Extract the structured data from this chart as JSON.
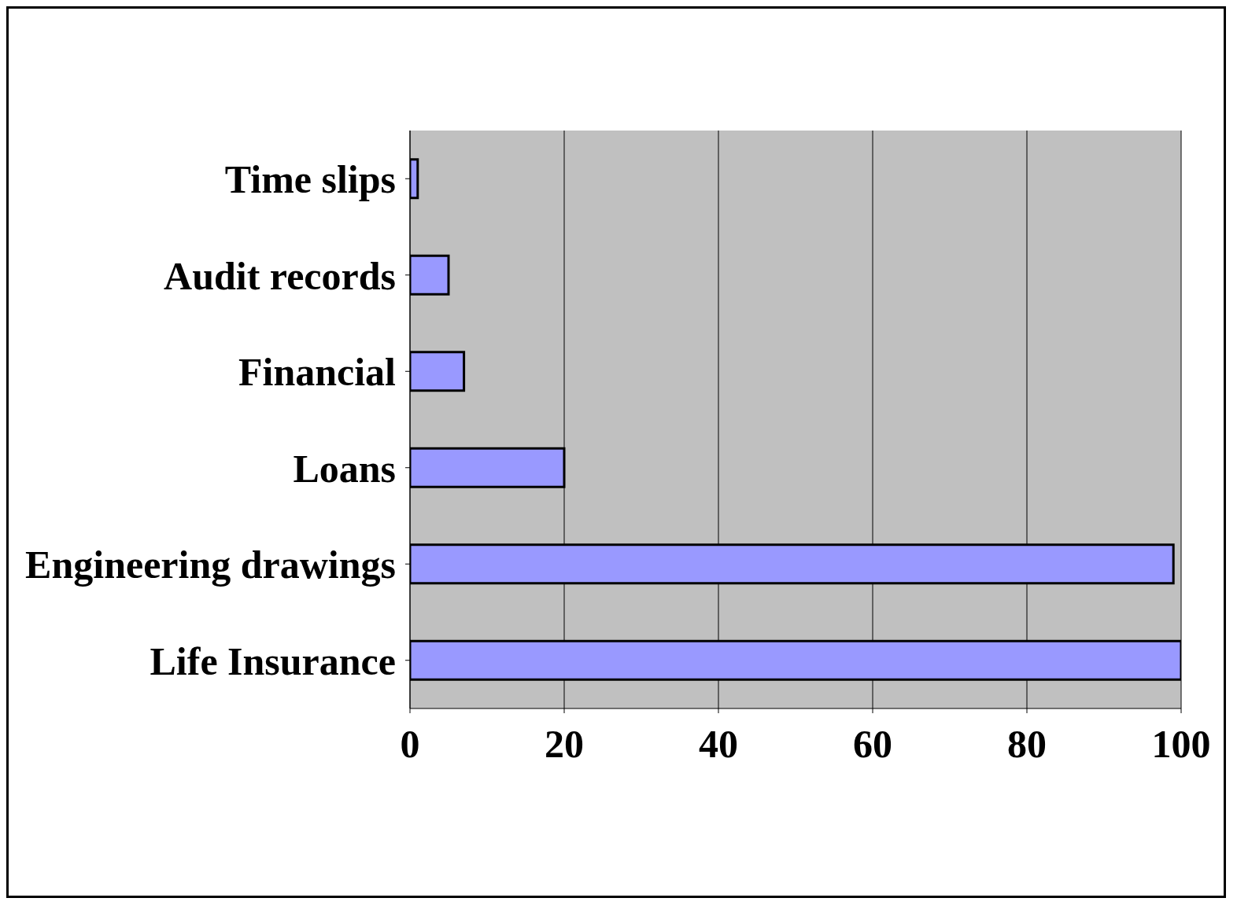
{
  "chart_data": {
    "type": "bar",
    "orientation": "horizontal",
    "categories": [
      "Time slips",
      "Audit records",
      "Financial",
      "Loans",
      "Engineering drawings",
      "Life Insurance"
    ],
    "values": [
      1,
      5,
      7,
      20,
      99,
      100
    ],
    "color": "#9999ff",
    "xlim": [
      0,
      100
    ],
    "xticks": [
      0,
      20,
      40,
      60,
      80,
      100
    ],
    "grid": "x"
  }
}
